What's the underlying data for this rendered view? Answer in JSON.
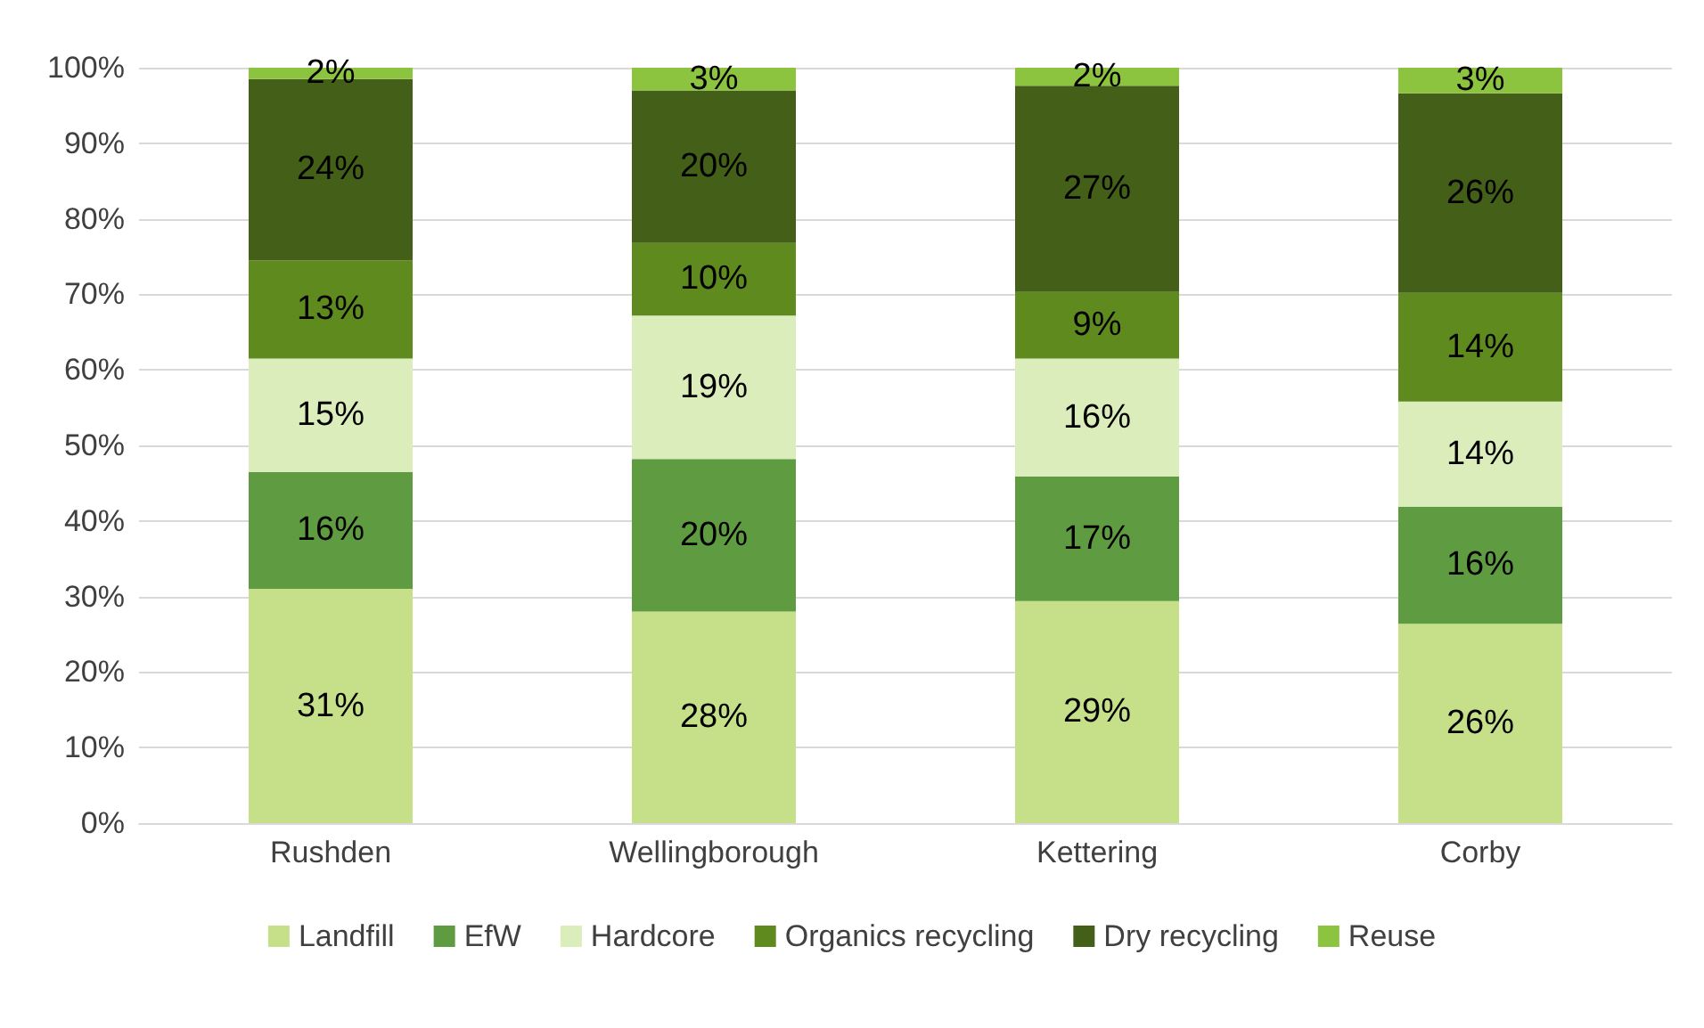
{
  "chart_data": {
    "type": "bar",
    "stacked": true,
    "categories": [
      "Rushden",
      "Wellingborough",
      "Kettering",
      "Corby"
    ],
    "series": [
      {
        "name": "Landfill",
        "color": "#c5e088",
        "values": [
          31,
          28,
          29.4,
          26.4
        ],
        "value_labels": [
          "31%",
          "28%",
          "29%",
          "26%"
        ]
      },
      {
        "name": "EfW",
        "color": "#5f9b40",
        "values": [
          15.5,
          20.2,
          16.5,
          15.5
        ],
        "value_labels": [
          "16%",
          "20%",
          "17%",
          "16%"
        ]
      },
      {
        "name": "Hardcore",
        "color": "#dbedbb",
        "values": [
          15,
          19,
          15.6,
          13.9
        ],
        "value_labels": [
          "15%",
          "19%",
          "16%",
          "14%"
        ]
      },
      {
        "name": "Organics recycling",
        "color": "#5e8a1e",
        "values": [
          13,
          9.6,
          8.8,
          14.4
        ],
        "value_labels": [
          "13%",
          "10%",
          "9%",
          "14%"
        ]
      },
      {
        "name": "Dry recycling",
        "color": "#435f18",
        "values": [
          24,
          20.2,
          27.3,
          26.4
        ],
        "value_labels": [
          "24%",
          "20%",
          "27%",
          "26%"
        ]
      },
      {
        "name": "Reuse",
        "color": "#8dc43f",
        "values": [
          1.5,
          3,
          2.4,
          3.4
        ],
        "value_labels": [
          "2%",
          "3%",
          "2%",
          "3%"
        ]
      }
    ],
    "ylim": [
      0,
      100
    ],
    "yticks": [
      {
        "value": 0,
        "label": "0%"
      },
      {
        "value": 10,
        "label": "10%"
      },
      {
        "value": 20,
        "label": "20%"
      },
      {
        "value": 30,
        "label": "30%"
      },
      {
        "value": 40,
        "label": "40%"
      },
      {
        "value": 50,
        "label": "50%"
      },
      {
        "value": 60,
        "label": "60%"
      },
      {
        "value": 70,
        "label": "70%"
      },
      {
        "value": 80,
        "label": "80%"
      },
      {
        "value": 90,
        "label": "90%"
      },
      {
        "value": 100,
        "label": "100%"
      }
    ],
    "grid": "y",
    "legend": "bottom"
  }
}
